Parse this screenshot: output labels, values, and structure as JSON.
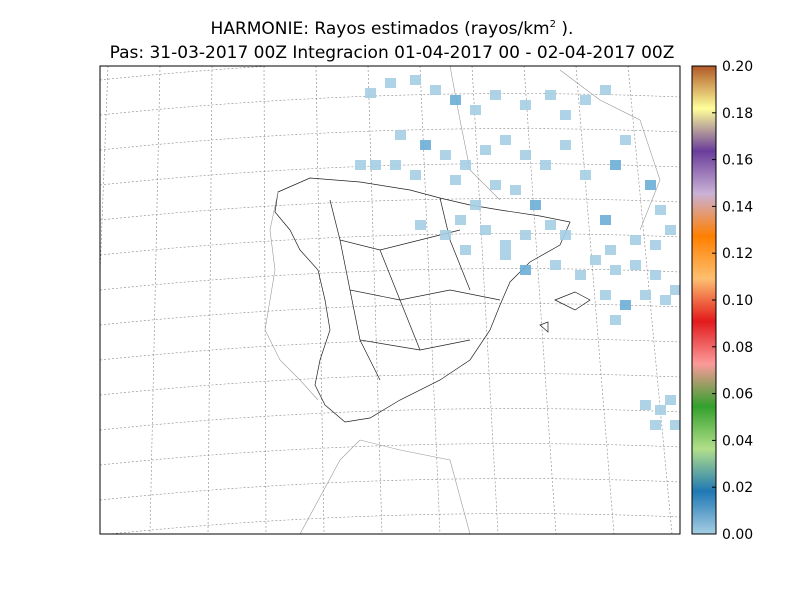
{
  "title": {
    "main": "HARMONIE: Rayos estimados  (rayos/km",
    "sup": "2",
    "end": " )."
  },
  "subtitle": "Pas: 31-03-2017 00Z Integracion 01-04-2017 00 - 02-04-2017 00Z",
  "colorbar": {
    "lim": [
      0,
      0.2
    ],
    "ticks": [
      {
        "value": 0,
        "label": "0.00"
      },
      {
        "value": 0.02,
        "label": "0.02"
      },
      {
        "value": 0.04,
        "label": "0.04"
      },
      {
        "value": 0.06,
        "label": "0.06"
      },
      {
        "value": 0.08,
        "label": "0.08"
      },
      {
        "value": 0.1,
        "label": "0.10"
      },
      {
        "value": 0.12,
        "label": "0.12"
      },
      {
        "value": 0.14,
        "label": "0.14"
      },
      {
        "value": 0.16,
        "label": "0.16"
      },
      {
        "value": 0.18,
        "label": "0.18"
      },
      {
        "value": 0.2,
        "label": "0.20"
      }
    ],
    "colors": [
      "#a6cee3",
      "#1f78b4",
      "#b2df8a",
      "#33a02c",
      "#fb9a99",
      "#e31a1c",
      "#fdbf6f",
      "#ff7f00",
      "#cab2d6",
      "#6a3d9a",
      "#ffff99",
      "#b15928"
    ]
  }
}
